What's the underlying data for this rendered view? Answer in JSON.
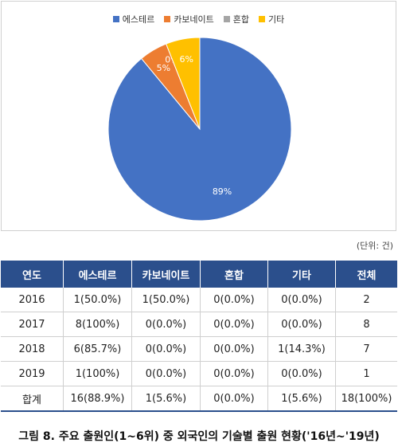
{
  "chart_data": {
    "type": "pie",
    "series": [
      {
        "name": "에스테르",
        "value": 89,
        "label": "89%",
        "color": "#4472c4"
      },
      {
        "name": "카보네이트",
        "value": 5,
        "label": "5%",
        "color": "#ed7d31"
      },
      {
        "name": "혼합",
        "value": 0,
        "label": "0%",
        "color": "#a5a5a5"
      },
      {
        "name": "기타",
        "value": 6,
        "label": "6%",
        "color": "#ffc000"
      }
    ],
    "legend_position": "top"
  },
  "unit_note": "(단위: 건)",
  "table": {
    "headers": [
      "연도",
      "에스테르",
      "카보네이트",
      "혼합",
      "기타",
      "전체"
    ],
    "rows": [
      [
        "2016",
        "1(50.0%)",
        "1(50.0%)",
        "0(0.0%)",
        "0(0.0%)",
        "2"
      ],
      [
        "2017",
        "8(100%)",
        "0(0.0%)",
        "0(0.0%)",
        "0(0.0%)",
        "8"
      ],
      [
        "2018",
        "6(85.7%)",
        "0(0.0%)",
        "0(0.0%)",
        "1(14.3%)",
        "7"
      ],
      [
        "2019",
        "1(100%)",
        "0(0.0%)",
        "0(0.0%)",
        "0(0.0%)",
        "1"
      ],
      [
        "합계",
        "16(88.9%)",
        "1(5.6%)",
        "0(0.0%)",
        "1(5.6%)",
        "18(100%)"
      ]
    ],
    "header_color": "#2b4f8c"
  },
  "caption": "그림 8. 주요 출원인(1~6위) 중 외국인의 기술별 출원 현황('16년~'19년)"
}
